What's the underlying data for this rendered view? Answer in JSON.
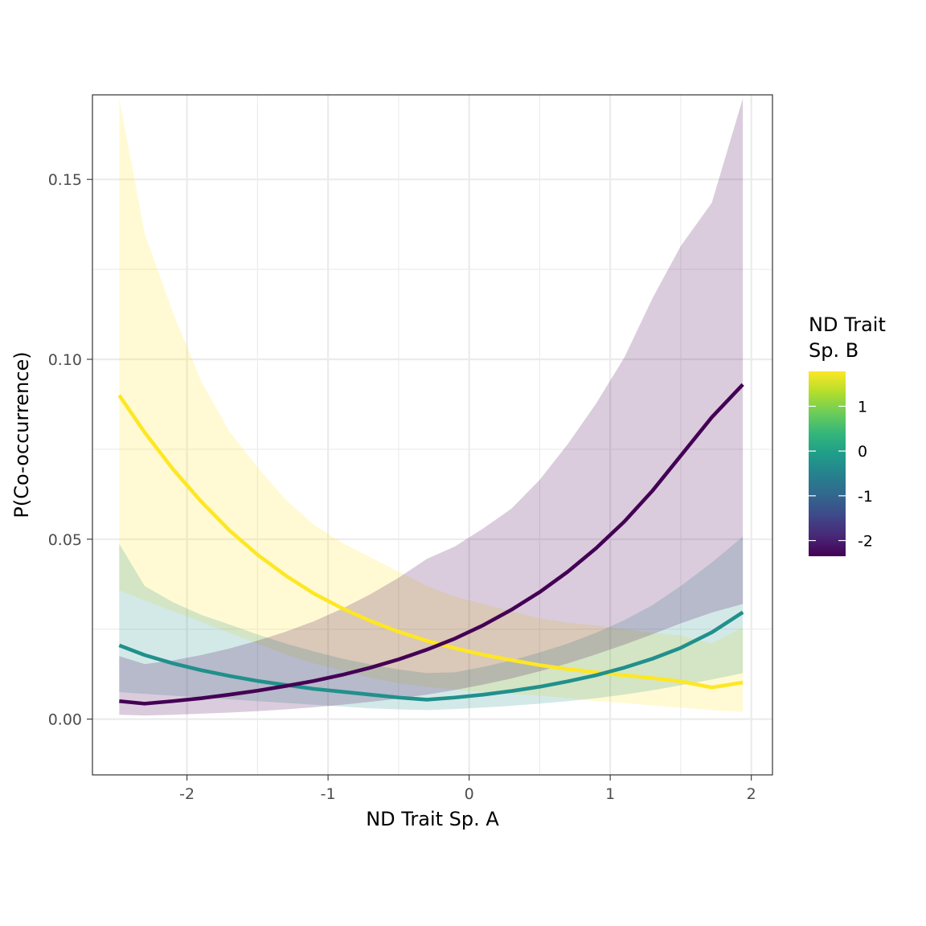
{
  "chart_data": {
    "type": "line",
    "title": "",
    "xlabel": "ND Trait Sp. A",
    "ylabel": "P(Co-occurrence)",
    "xlim": [
      -2.67,
      2.15
    ],
    "ylim": [
      -0.0155,
      0.1735
    ],
    "x_ticks": [
      -2,
      -1,
      0,
      1,
      2
    ],
    "x_tick_labels": [
      "-2",
      "-1",
      "0",
      "1",
      "2"
    ],
    "y_ticks": [
      0.0,
      0.05,
      0.1,
      0.15
    ],
    "y_tick_labels": [
      "0.00",
      "0.05",
      "0.10",
      "0.15"
    ],
    "grid": true,
    "legend": {
      "title_lines": [
        "ND Trait",
        "Sp. B"
      ],
      "placement": "right",
      "type": "colorbar",
      "range": [
        -2.35,
        1.78
      ],
      "ticks": [
        1,
        0,
        -1,
        -2
      ],
      "tick_labels": [
        "1",
        "0",
        "-1",
        "-2"
      ],
      "gradient": [
        "#FDE725",
        "#B4DE2C",
        "#6DCD59",
        "#35B779",
        "#1F9E89",
        "#26828E",
        "#31688E",
        "#3E4A89",
        "#482878",
        "#440154"
      ]
    },
    "series": [
      {
        "color": "#FDE725",
        "fill_opacity": 0.2,
        "x": [
          -2.48,
          -2.3,
          -2.1,
          -1.9,
          -1.7,
          -1.5,
          -1.3,
          -1.1,
          -0.9,
          -0.7,
          -0.5,
          -0.3,
          -0.1,
          0.1,
          0.3,
          0.5,
          0.7,
          0.9,
          1.1,
          1.3,
          1.5,
          1.72,
          1.94
        ],
        "y": [
          0.09,
          0.0797,
          0.0695,
          0.0605,
          0.0525,
          0.0457,
          0.0399,
          0.0349,
          0.0308,
          0.0273,
          0.0243,
          0.0218,
          0.0197,
          0.0179,
          0.0164,
          0.015,
          0.0139,
          0.013,
          0.0122,
          0.0114,
          0.0105,
          0.0088,
          0.0102
        ],
        "ymin": [
          0.0358,
          0.033,
          0.03,
          0.027,
          0.024,
          0.021,
          0.018,
          0.0155,
          0.0135,
          0.0115,
          0.01,
          0.009,
          0.0082,
          0.0075,
          0.007,
          0.0065,
          0.0058,
          0.005,
          0.0045,
          0.0038,
          0.0032,
          0.0025,
          0.002
        ],
        "ymax": [
          0.1725,
          0.135,
          0.113,
          0.094,
          0.08,
          0.07,
          0.061,
          0.054,
          0.049,
          0.045,
          0.041,
          0.037,
          0.034,
          0.032,
          0.03,
          0.028,
          0.0268,
          0.026,
          0.025,
          0.024,
          0.0232,
          0.021,
          0.0255
        ]
      },
      {
        "color": "#21908C",
        "fill_opacity": 0.2,
        "x": [
          -2.48,
          -2.3,
          -2.1,
          -1.9,
          -1.7,
          -1.5,
          -1.3,
          -1.1,
          -0.9,
          -0.7,
          -0.5,
          -0.3,
          -0.1,
          0.1,
          0.3,
          0.5,
          0.7,
          0.9,
          1.1,
          1.3,
          1.5,
          1.72,
          1.94
        ],
        "y": [
          0.0205,
          0.0178,
          0.0155,
          0.0136,
          0.012,
          0.0106,
          0.0095,
          0.0084,
          0.0076,
          0.0068,
          0.006,
          0.0054,
          0.006,
          0.0068,
          0.0078,
          0.009,
          0.0105,
          0.0122,
          0.0143,
          0.0168,
          0.0198,
          0.0241,
          0.0297
        ],
        "ymin": [
          0.0075,
          0.007,
          0.0065,
          0.006,
          0.0055,
          0.005,
          0.0045,
          0.004,
          0.0035,
          0.003,
          0.0027,
          0.0025,
          0.0028,
          0.0032,
          0.0037,
          0.0043,
          0.005,
          0.0058,
          0.0068,
          0.008,
          0.0094,
          0.011,
          0.0128
        ],
        "ymax": [
          0.0487,
          0.037,
          0.0325,
          0.029,
          0.0263,
          0.0235,
          0.021,
          0.0188,
          0.0168,
          0.0152,
          0.0138,
          0.0128,
          0.013,
          0.0145,
          0.0163,
          0.0185,
          0.021,
          0.024,
          0.0275,
          0.0317,
          0.037,
          0.0435,
          0.0507
        ]
      },
      {
        "color": "#440154",
        "fill_opacity": 0.2,
        "x": [
          -2.48,
          -2.3,
          -2.1,
          -1.9,
          -1.7,
          -1.5,
          -1.3,
          -1.1,
          -0.9,
          -0.7,
          -0.5,
          -0.3,
          -0.1,
          0.1,
          0.3,
          0.5,
          0.7,
          0.9,
          1.1,
          1.3,
          1.5,
          1.72,
          1.94
        ],
        "y": [
          0.005,
          0.0043,
          0.005,
          0.0058,
          0.0068,
          0.0079,
          0.0092,
          0.0106,
          0.0123,
          0.0143,
          0.0166,
          0.0193,
          0.0224,
          0.0261,
          0.0304,
          0.0353,
          0.041,
          0.0475,
          0.0549,
          0.0635,
          0.0732,
          0.0839,
          0.093
        ],
        "ymin": [
          0.0012,
          0.001,
          0.0012,
          0.0015,
          0.0018,
          0.0022,
          0.0027,
          0.0033,
          0.004,
          0.0048,
          0.0057,
          0.0068,
          0.0081,
          0.0096,
          0.0113,
          0.0133,
          0.0155,
          0.018,
          0.0207,
          0.0236,
          0.0266,
          0.0296,
          0.032
        ],
        "ymax": [
          0.0175,
          0.0153,
          0.0163,
          0.0178,
          0.0196,
          0.0218,
          0.0243,
          0.0272,
          0.0307,
          0.0347,
          0.0393,
          0.0445,
          0.048,
          0.053,
          0.0585,
          0.0665,
          0.0765,
          0.0877,
          0.1005,
          0.117,
          0.1315,
          0.1435,
          0.1725
        ]
      }
    ]
  }
}
